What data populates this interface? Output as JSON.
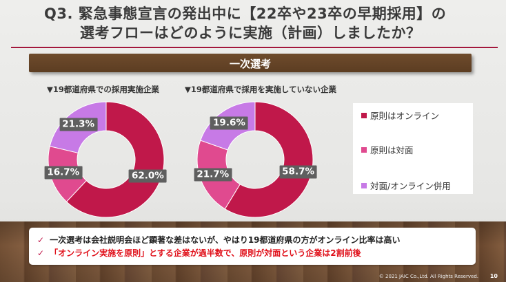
{
  "title": {
    "line1": "Q3.  緊急事態宣言の発出中に【22卒や23卒の早期採用】の",
    "line2": "選考フローはどのように実施（計画）しましたか？"
  },
  "section_label": "一次選考",
  "colors": {
    "online": "#c0184a",
    "face": "#e04a8f",
    "hybrid": "#c77ae6",
    "accent": "#a3173c"
  },
  "chart_data": [
    {
      "type": "pie",
      "title": "▼19都道府県での採用実施企業",
      "slices": [
        {
          "label": "原則はオンライン",
          "value": 62.0,
          "text": "62.0%"
        },
        {
          "label": "原則は対面",
          "value": 16.7,
          "text": "16.7%"
        },
        {
          "label": "対面/オンライン併用",
          "value": 21.3,
          "text": "21.3%"
        }
      ]
    },
    {
      "type": "pie",
      "title": "▼19都道府県で採用を実施していない企業",
      "slices": [
        {
          "label": "原則はオンライン",
          "value": 58.7,
          "text": "58.7%"
        },
        {
          "label": "原則は対面",
          "value": 21.7,
          "text": "21.7%"
        },
        {
          "label": "対面/オンライン併用",
          "value": 19.6,
          "text": "19.6%"
        }
      ]
    }
  ],
  "legend": {
    "items": [
      "原則はオンライン",
      "原則は対面",
      "対面/オンライン併用"
    ],
    "placement": "right"
  },
  "notes": {
    "check": "✓",
    "line1": "一次選考は会社説明会ほど顕著な差はないが、やはり19都道府県の方がオンライン比率は高い",
    "line2_red": "「オンライン実施を原則」とする企業が過半数で、原則が対面という企業は2割前後"
  },
  "footer": {
    "copyright": "© 2021 JAIC Co.,Ltd.  All Rights Reserved.",
    "page": "10"
  }
}
